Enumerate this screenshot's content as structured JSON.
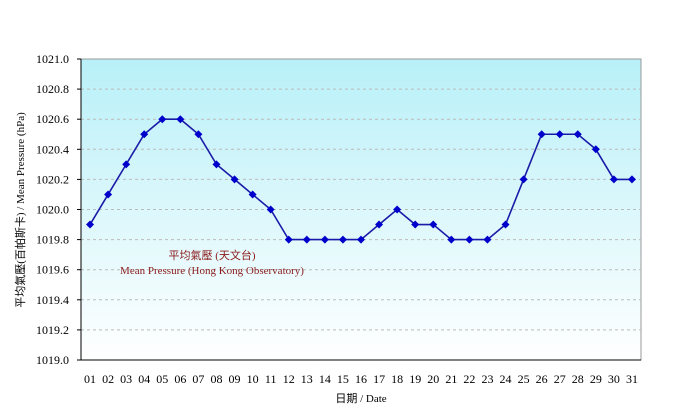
{
  "chart_data": {
    "type": "line",
    "title": "",
    "xlabel": "日期 / Date",
    "ylabel": "平均氣壓(百帕斯卡) / Mean Pressure (hPa)",
    "ylim": [
      1019.0,
      1021.0
    ],
    "yticks": [
      "1019.0",
      "1019.2",
      "1019.4",
      "1019.6",
      "1019.8",
      "1020.0",
      "1020.2",
      "1020.4",
      "1020.6",
      "1020.8",
      "1021.0"
    ],
    "grid": true,
    "categories": [
      "01",
      "02",
      "03",
      "04",
      "05",
      "06",
      "07",
      "08",
      "09",
      "10",
      "11",
      "12",
      "13",
      "14",
      "15",
      "16",
      "17",
      "18",
      "19",
      "20",
      "21",
      "22",
      "23",
      "24",
      "25",
      "26",
      "27",
      "28",
      "29",
      "30",
      "31"
    ],
    "series": [
      {
        "name": "平均氣壓 (天文台) Mean Pressure (Hong Kong Observatory)",
        "values": [
          1019.9,
          1020.1,
          1020.3,
          1020.5,
          1020.6,
          1020.6,
          1020.5,
          1020.3,
          1020.2,
          1020.1,
          1020.0,
          1019.8,
          1019.8,
          1019.8,
          1019.8,
          1019.8,
          1019.9,
          1020.0,
          1019.9,
          1019.9,
          1019.8,
          1019.8,
          1019.8,
          1019.9,
          1020.2,
          1020.5,
          1020.5,
          1020.5,
          1020.4,
          1020.2,
          1020.2
        ]
      }
    ],
    "annotation": {
      "line1": "平均氣壓 (天文台)",
      "line2": "Mean Pressure (Hong Kong Observatory)"
    },
    "colors": {
      "line": "#0000cc",
      "annotation": "#8b1a1a",
      "bg_top": "#b8f0f8",
      "bg_bottom": "#ffffff"
    }
  }
}
